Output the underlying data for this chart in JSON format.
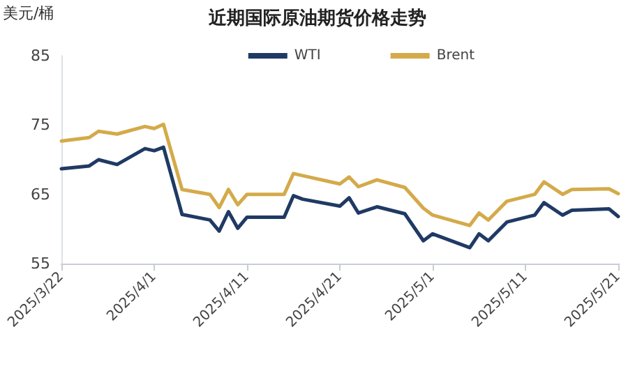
{
  "chart_data": {
    "type": "line",
    "title": "近期国际原油期货价格走势",
    "ylabel": "美元/桶",
    "x": [
      "2025-03-22",
      "2025-03-25",
      "2025-03-26",
      "2025-03-28",
      "2025-03-31",
      "2025-04-01",
      "2025-04-02",
      "2025-04-04",
      "2025-04-07",
      "2025-04-08",
      "2025-04-09",
      "2025-04-10",
      "2025-04-11",
      "2025-04-15",
      "2025-04-16",
      "2025-04-17",
      "2025-04-21",
      "2025-04-22",
      "2025-04-23",
      "2025-04-25",
      "2025-04-28",
      "2025-04-30",
      "2025-05-01",
      "2025-05-05",
      "2025-05-06",
      "2025-05-07",
      "2025-05-09",
      "2025-05-12",
      "2025-05-13",
      "2025-05-15",
      "2025-05-16",
      "2025-05-20",
      "2025-05-21"
    ],
    "series": [
      {
        "name": "WTI",
        "color": "#1f3a64",
        "values": [
          68.7,
          69.1,
          70.0,
          69.3,
          71.6,
          71.3,
          71.8,
          62.1,
          61.3,
          59.7,
          62.5,
          60.1,
          61.7,
          61.7,
          64.8,
          64.3,
          63.3,
          64.5,
          62.3,
          63.2,
          62.2,
          58.3,
          59.3,
          57.3,
          59.3,
          58.3,
          61.0,
          62.0,
          63.8,
          62.0,
          62.7,
          62.9,
          61.8
        ]
      },
      {
        "name": "Brent",
        "color": "#d4aa4a",
        "values": [
          72.7,
          73.2,
          74.1,
          73.7,
          74.8,
          74.5,
          75.1,
          65.7,
          65.0,
          63.1,
          65.7,
          63.5,
          65.0,
          65.0,
          68.0,
          67.7,
          66.5,
          67.5,
          66.1,
          67.1,
          66.0,
          63.0,
          62.0,
          60.5,
          62.3,
          61.3,
          64.0,
          65.0,
          66.8,
          65.0,
          65.7,
          65.8,
          65.1
        ]
      }
    ],
    "xlim": [
      "2025-03-22",
      "2025-05-21"
    ],
    "xticks": [
      {
        "value": "2025-03-22",
        "label": "2025/3/22"
      },
      {
        "value": "2025-04-01",
        "label": "2025/4/1"
      },
      {
        "value": "2025-04-11",
        "label": "2025/4/11"
      },
      {
        "value": "2025-04-21",
        "label": "2025/4/21"
      },
      {
        "value": "2025-05-01",
        "label": "2025/5/1"
      },
      {
        "value": "2025-05-11",
        "label": "2025/5/11"
      },
      {
        "value": "2025-05-21",
        "label": "2025/5/21"
      }
    ],
    "ylim": [
      55,
      85
    ],
    "yticks": [
      55,
      65,
      75,
      85
    ],
    "legend": "top right",
    "grid": false,
    "marker": "none",
    "line_style": "solid"
  }
}
